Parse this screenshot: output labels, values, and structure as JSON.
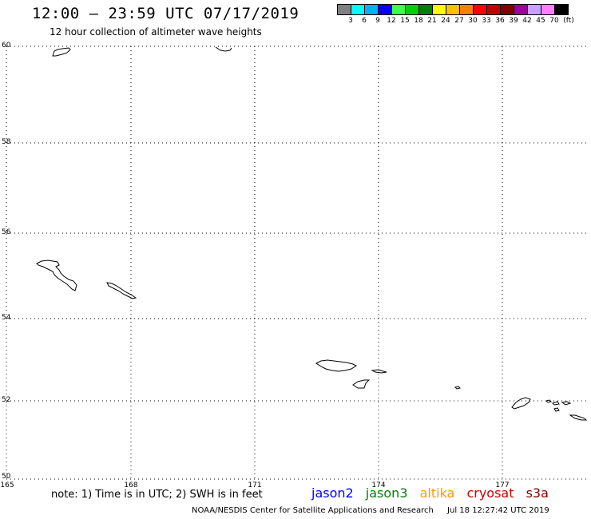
{
  "header": {
    "title": "12:00 – 23:59 UTC 07/17/2019",
    "subtitle": "12 hour collection of altimeter wave heights"
  },
  "legend": {
    "colors": [
      "#808080",
      "#00ffff",
      "#00b0ff",
      "#0000ff",
      "#40ff40",
      "#00d000",
      "#008000",
      "#ffff00",
      "#ffc000",
      "#ff8000",
      "#ff0000",
      "#c00000",
      "#800000",
      "#a000a0",
      "#c8a0ff",
      "#ff80ff",
      "#000000"
    ],
    "labels": [
      "3",
      "6",
      "9",
      "12",
      "15",
      "18",
      "21",
      "24",
      "27",
      "30",
      "33",
      "36",
      "39",
      "42",
      "45",
      "70",
      "(ft)"
    ]
  },
  "axes": {
    "lat_labels": [
      "60",
      "58",
      "56",
      "54",
      "52",
      "50"
    ],
    "lon_labels": [
      "165",
      "168",
      "171",
      "174",
      "177"
    ]
  },
  "note": "note: 1) Time is in UTC; 2) SWH is in feet",
  "satellites": [
    {
      "name": "jason2",
      "color": "#0000ff"
    },
    {
      "name": "jason3",
      "color": "#008000"
    },
    {
      "name": "altika",
      "color": "#ff9900"
    },
    {
      "name": "cryosat",
      "color": "#cc0000"
    },
    {
      "name": "s3a",
      "color": "#800000"
    }
  ],
  "footer": {
    "credit": "NOAA/NESDIS Center for Satellite Applications and Research",
    "timestamp": "Jul 18 12:27:42 UTC 2019"
  }
}
